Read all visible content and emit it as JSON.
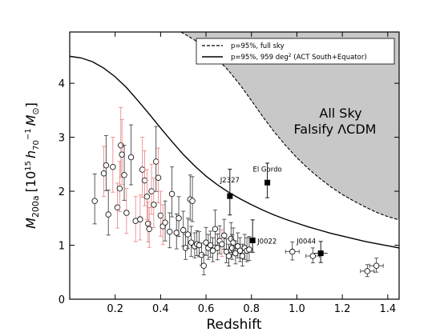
{
  "chart_data": {
    "type": "scatter",
    "title": "",
    "xlabel": "Redshift",
    "ylabel_parts": {
      "base": "M",
      "sub": "200a",
      "bracket_open": "[10",
      "exp": "15",
      "h": "h",
      "hsub": "70",
      "hexp": "−1",
      "M2": "M",
      "sun": "⊙",
      "bracket_close": "]"
    },
    "xlim": [
      0.0,
      1.45
    ],
    "ylim": [
      0.0,
      4.95
    ],
    "xticks": [
      "0.2",
      "0.4",
      "0.6",
      "0.8",
      "1.0",
      "1.2",
      "1.4"
    ],
    "xtick_values": [
      0.2,
      0.4,
      0.6,
      0.8,
      1.0,
      1.2,
      1.4
    ],
    "yticks": [
      "0",
      "1",
      "2",
      "3",
      "4"
    ],
    "ytick_values": [
      0,
      1,
      2,
      3,
      4
    ],
    "grid": false,
    "legend_placement": "top-right",
    "legend": [
      {
        "label": "p=95%, full sky",
        "style": "dashed"
      },
      {
        "label": "p=95%,  959 deg",
        "sup": "2",
        "suffix": " (ACT South+Equator)",
        "style": "solid"
      }
    ],
    "shaded_region_label": [
      "All Sky",
      "Falsify ΛCDM"
    ],
    "colors": {
      "shade": "#c8c8c8",
      "errorbar_black": "#333333",
      "errorbar_red": "#e88080",
      "marker_edge": "#000000",
      "marker_face": "#ffffff",
      "square": "#000000"
    },
    "curve_full_sky": {
      "x": [
        0.49,
        0.55,
        0.6,
        0.65,
        0.7,
        0.75,
        0.8,
        0.85,
        0.9,
        0.95,
        1.0,
        1.05,
        1.1,
        1.15,
        1.2,
        1.25,
        1.3,
        1.35,
        1.4,
        1.45
      ],
      "y": [
        4.95,
        4.8,
        4.64,
        4.45,
        4.23,
        3.97,
        3.68,
        3.38,
        3.1,
        2.85,
        2.62,
        2.42,
        2.24,
        2.08,
        1.94,
        1.82,
        1.71,
        1.61,
        1.53,
        1.47
      ]
    },
    "curve_959": {
      "x": [
        0.0,
        0.05,
        0.1,
        0.15,
        0.2,
        0.25,
        0.3,
        0.35,
        0.4,
        0.45,
        0.5,
        0.55,
        0.6,
        0.65,
        0.7,
        0.75,
        0.8,
        0.85,
        0.9,
        0.95,
        1.0,
        1.05,
        1.1,
        1.15,
        1.2,
        1.25,
        1.3,
        1.35,
        1.4,
        1.45
      ],
      "y": [
        4.5,
        4.47,
        4.4,
        4.28,
        4.12,
        3.92,
        3.68,
        3.43,
        3.17,
        2.92,
        2.68,
        2.47,
        2.28,
        2.12,
        1.98,
        1.86,
        1.75,
        1.65,
        1.56,
        1.48,
        1.41,
        1.34,
        1.28,
        1.22,
        1.17,
        1.12,
        1.07,
        1.03,
        0.99,
        0.95
      ]
    },
    "named_clusters": [
      {
        "name": "El Gordo",
        "x": 0.87,
        "y": 2.16,
        "yerr": [
          0.28,
          0.36
        ]
      },
      {
        "name": "J2327",
        "x": 0.705,
        "y": 1.91,
        "yerr": [
          0.35,
          0.5
        ]
      },
      {
        "name": "J0022",
        "x": 0.805,
        "y": 1.09,
        "yerr": [
          0.22,
          0.38
        ]
      },
      {
        "name": "J0044",
        "x": 1.105,
        "y": 0.85,
        "yerr": [
          0.17,
          0.22
        ]
      }
    ],
    "clusters": [
      {
        "x": 0.11,
        "y": 1.82,
        "err": 0.5,
        "red": false
      },
      {
        "x": 0.15,
        "y": 2.33,
        "err": 0.5,
        "red": true
      },
      {
        "x": 0.16,
        "y": 2.48,
        "err": 0.55,
        "red": false
      },
      {
        "x": 0.17,
        "y": 1.57,
        "err": 0.45,
        "red": false
      },
      {
        "x": 0.19,
        "y": 2.45,
        "err": 0.55,
        "red": true
      },
      {
        "x": 0.21,
        "y": 1.7,
        "err": 0.45,
        "red": true
      },
      {
        "x": 0.22,
        "y": 2.05,
        "err": 0.5,
        "red": true
      },
      {
        "x": 0.225,
        "y": 2.85,
        "err": 0.7,
        "red": true
      },
      {
        "x": 0.23,
        "y": 2.68,
        "err": 0.65,
        "red": true
      },
      {
        "x": 0.24,
        "y": 2.3,
        "err": 0.55,
        "red": false
      },
      {
        "x": 0.25,
        "y": 1.6,
        "err": 0.45,
        "red": true
      },
      {
        "x": 0.27,
        "y": 2.63,
        "err": 0.6,
        "red": false
      },
      {
        "x": 0.29,
        "y": 1.45,
        "err": 0.45,
        "red": true
      },
      {
        "x": 0.31,
        "y": 1.48,
        "err": 0.45,
        "red": true
      },
      {
        "x": 0.32,
        "y": 2.4,
        "err": 0.6,
        "red": true
      },
      {
        "x": 0.33,
        "y": 2.2,
        "err": 0.55,
        "red": true
      },
      {
        "x": 0.34,
        "y": 1.9,
        "err": 0.5,
        "red": true
      },
      {
        "x": 0.345,
        "y": 1.4,
        "err": 0.4,
        "red": true
      },
      {
        "x": 0.35,
        "y": 1.3,
        "err": 0.4,
        "red": true
      },
      {
        "x": 0.36,
        "y": 2.0,
        "err": 0.5,
        "red": true
      },
      {
        "x": 0.37,
        "y": 1.75,
        "err": 0.5,
        "red": true
      },
      {
        "x": 0.38,
        "y": 2.55,
        "err": 0.65,
        "red": false
      },
      {
        "x": 0.39,
        "y": 2.25,
        "err": 0.55,
        "red": true
      },
      {
        "x": 0.4,
        "y": 1.55,
        "err": 0.45,
        "red": true
      },
      {
        "x": 0.41,
        "y": 1.35,
        "err": 0.4,
        "red": true
      },
      {
        "x": 0.42,
        "y": 1.42,
        "err": 0.4,
        "red": false
      },
      {
        "x": 0.44,
        "y": 1.25,
        "err": 0.35,
        "red": false
      },
      {
        "x": 0.45,
        "y": 1.95,
        "err": 0.5,
        "red": false
      },
      {
        "x": 0.47,
        "y": 1.23,
        "err": 0.35,
        "red": false
      },
      {
        "x": 0.48,
        "y": 1.5,
        "err": 0.4,
        "red": false
      },
      {
        "x": 0.5,
        "y": 1.28,
        "err": 0.35,
        "red": false
      },
      {
        "x": 0.51,
        "y": 0.95,
        "err": 0.25,
        "red": false
      },
      {
        "x": 0.52,
        "y": 1.2,
        "err": 0.3,
        "red": false
      },
      {
        "x": 0.53,
        "y": 1.85,
        "err": 0.45,
        "red": false
      },
      {
        "x": 0.535,
        "y": 1.05,
        "err": 0.3,
        "red": false
      },
      {
        "x": 0.54,
        "y": 1.82,
        "err": 0.45,
        "red": false
      },
      {
        "x": 0.55,
        "y": 0.98,
        "err": 0.25,
        "red": false
      },
      {
        "x": 0.56,
        "y": 1.02,
        "err": 0.25,
        "red": false
      },
      {
        "x": 0.57,
        "y": 1.0,
        "err": 0.25,
        "red": false
      },
      {
        "x": 0.58,
        "y": 0.82,
        "err": 0.22,
        "red": false
      },
      {
        "x": 0.59,
        "y": 0.62,
        "err": 0.2,
        "red": false
      },
      {
        "x": 0.6,
        "y": 1.05,
        "err": 0.28,
        "red": false
      },
      {
        "x": 0.61,
        "y": 0.95,
        "err": 0.25,
        "red": false
      },
      {
        "x": 0.62,
        "y": 1.0,
        "err": 0.26,
        "red": false
      },
      {
        "x": 0.63,
        "y": 0.9,
        "err": 0.24,
        "red": false
      },
      {
        "x": 0.64,
        "y": 1.3,
        "err": 0.35,
        "red": false
      },
      {
        "x": 0.65,
        "y": 0.95,
        "err": 0.26,
        "red": false
      },
      {
        "x": 0.66,
        "y": 1.08,
        "err": 0.28,
        "red": false
      },
      {
        "x": 0.67,
        "y": 1.02,
        "err": 0.27,
        "red": true
      },
      {
        "x": 0.68,
        "y": 1.18,
        "err": 0.3,
        "red": false
      },
      {
        "x": 0.69,
        "y": 0.88,
        "err": 0.24,
        "red": false
      },
      {
        "x": 0.7,
        "y": 0.8,
        "err": 0.22,
        "red": false
      },
      {
        "x": 0.71,
        "y": 1.12,
        "err": 0.3,
        "red": false
      },
      {
        "x": 0.715,
        "y": 0.95,
        "err": 0.25,
        "red": false
      },
      {
        "x": 0.72,
        "y": 1.05,
        "err": 0.27,
        "red": false
      },
      {
        "x": 0.73,
        "y": 0.85,
        "err": 0.23,
        "red": false
      },
      {
        "x": 0.74,
        "y": 0.98,
        "err": 0.25,
        "red": false
      },
      {
        "x": 0.75,
        "y": 0.9,
        "err": 0.24,
        "red": false
      },
      {
        "x": 0.76,
        "y": 0.8,
        "err": 0.22,
        "red": false
      },
      {
        "x": 0.77,
        "y": 0.95,
        "err": 0.25,
        "red": false
      },
      {
        "x": 0.78,
        "y": 0.9,
        "err": 0.24,
        "red": false
      },
      {
        "x": 0.79,
        "y": 0.92,
        "err": 0.24,
        "red": false
      },
      {
        "x": 0.98,
        "y": 0.88,
        "err": 0.18,
        "red": false
      },
      {
        "x": 1.07,
        "y": 0.8,
        "err": 0.15,
        "red": false
      },
      {
        "x": 1.31,
        "y": 0.52,
        "err": 0.12,
        "red": false
      },
      {
        "x": 1.35,
        "y": 0.62,
        "err": 0.14,
        "red": false
      }
    ]
  }
}
